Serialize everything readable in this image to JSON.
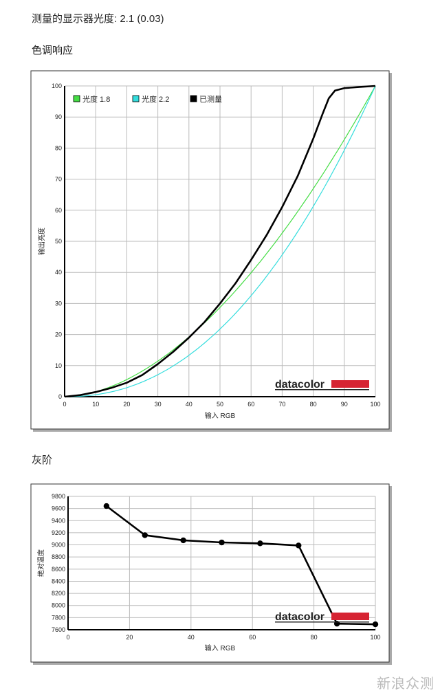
{
  "header": {
    "gamma_line": "测量的显示器光度:  2.1 (0.03)",
    "tone_title": "色调响应",
    "gray_title": "灰阶"
  },
  "watermark": "新浪众测",
  "chart_data": [
    {
      "type": "line",
      "title": "色调响应",
      "xlabel": "输入 RGB",
      "ylabel": "输出亮度",
      "xlim": [
        0,
        100
      ],
      "ylim": [
        0,
        100
      ],
      "grid": true,
      "legend_position": "top-left",
      "brand_logo": "datacolor",
      "x_ticks": [
        0,
        10,
        20,
        30,
        40,
        50,
        60,
        70,
        80,
        90,
        100
      ],
      "y_ticks": [
        0,
        10,
        20,
        30,
        40,
        50,
        60,
        70,
        80,
        90,
        100
      ],
      "series": [
        {
          "name": "光度 1.8",
          "color": "#44dd44",
          "kind": "gamma",
          "gamma": 1.8
        },
        {
          "name": "光度 2.2",
          "color": "#33dddd",
          "kind": "gamma",
          "gamma": 2.2
        },
        {
          "name": "已测量",
          "color": "#000000",
          "x": [
            0,
            5,
            10,
            15,
            20,
            25,
            30,
            35,
            40,
            45,
            50,
            55,
            60,
            65,
            70,
            75,
            80,
            83,
            85,
            87,
            90,
            95,
            100
          ],
          "y": [
            0,
            0.5,
            1.5,
            2.8,
            4.5,
            7,
            10.5,
            14.5,
            19,
            24,
            30,
            36.5,
            44,
            52,
            61,
            71,
            83,
            91,
            96,
            98.5,
            99.3,
            99.7,
            100
          ]
        }
      ]
    },
    {
      "type": "line",
      "title": "灰阶",
      "xlabel": "输入 RGB",
      "ylabel": "绝对温度",
      "xlim": [
        0,
        100
      ],
      "ylim": [
        7600,
        9800
      ],
      "grid": true,
      "brand_logo": "datacolor",
      "x_ticks": [
        0,
        20,
        40,
        60,
        80,
        100
      ],
      "y_ticks": [
        7600,
        7800,
        8000,
        8200,
        8400,
        8600,
        8800,
        9000,
        9200,
        9400,
        9600,
        9800
      ],
      "series": [
        {
          "name": "",
          "color": "#000000",
          "x": [
            12.5,
            25,
            37.5,
            50,
            62.5,
            75,
            87.5,
            100
          ],
          "y": [
            9640,
            9160,
            9075,
            9040,
            9025,
            8990,
            7700,
            7690
          ]
        }
      ]
    }
  ]
}
